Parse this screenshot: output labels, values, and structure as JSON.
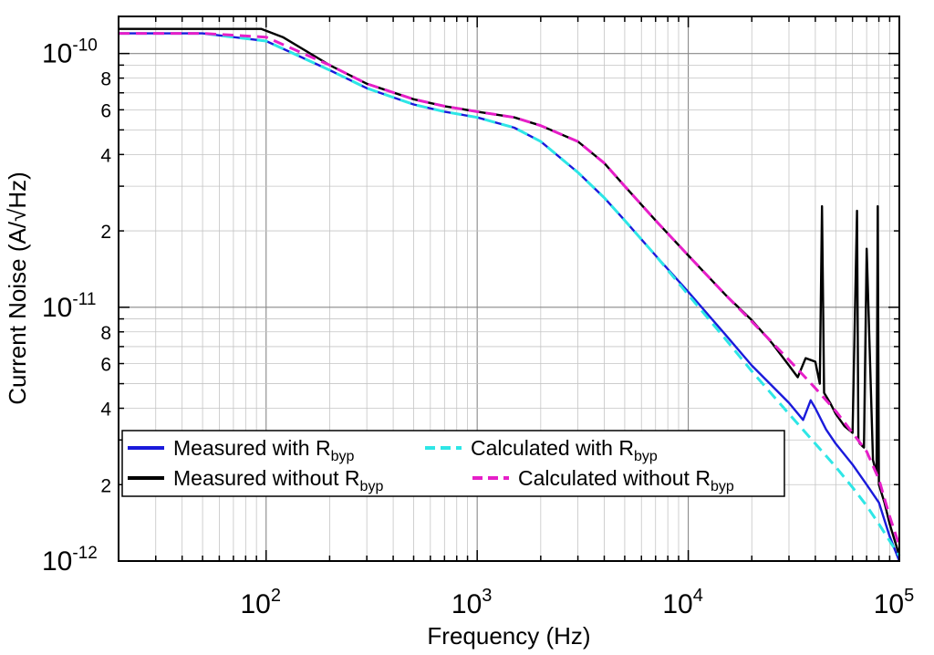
{
  "chart_data": {
    "type": "line",
    "xscale": "log",
    "yscale": "log",
    "xlim": [
      20,
      100000
    ],
    "ylim": [
      1e-12,
      1.4e-10
    ],
    "xlabel": "Frequency (Hz)",
    "ylabel": "Current Noise (A/√Hz)",
    "x_ticks": [
      {
        "value": 100,
        "base": "10",
        "exp": "2"
      },
      {
        "value": 1000,
        "base": "10",
        "exp": "3"
      },
      {
        "value": 10000,
        "base": "10",
        "exp": "4"
      },
      {
        "value": 100000,
        "base": "10",
        "exp": "5"
      }
    ],
    "y_major_ticks": [
      {
        "value": 1e-10,
        "base": "10",
        "exp": "-10"
      },
      {
        "value": 1e-11,
        "base": "10",
        "exp": "-11"
      },
      {
        "value": 1e-12,
        "base": "10",
        "exp": "-12"
      }
    ],
    "y_minor_labels": [
      {
        "value": 8e-11,
        "label": "8"
      },
      {
        "value": 6e-11,
        "label": "6"
      },
      {
        "value": 4e-11,
        "label": "4"
      },
      {
        "value": 2e-11,
        "label": "2"
      },
      {
        "value": 8e-12,
        "label": "8"
      },
      {
        "value": 6e-12,
        "label": "6"
      },
      {
        "value": 4e-12,
        "label": "4"
      },
      {
        "value": 2e-12,
        "label": "2"
      }
    ],
    "grid": true,
    "legend_position": "lower-left",
    "series": [
      {
        "name": "Measured with R_byp",
        "label_main": "Measured with R",
        "label_sub": "byp",
        "color": "#1a1adb",
        "style": "solid",
        "x": [
          20,
          50,
          100,
          200,
          300,
          500,
          700,
          1000,
          1500,
          2000,
          3000,
          4000,
          5000,
          7000,
          10000,
          15000,
          20000,
          30000,
          35000,
          38000,
          40000,
          45000,
          50000,
          60000,
          70000,
          80000,
          90000,
          100000
        ],
        "y": [
          1.2e-10,
          1.2e-10,
          1.12e-10,
          8.6e-11,
          7.3e-11,
          6.3e-11,
          5.9e-11,
          5.6e-11,
          5.1e-11,
          4.5e-11,
          3.4e-11,
          2.7e-11,
          2.2e-11,
          1.6e-11,
          1.15e-11,
          7.8e-12,
          5.9e-12,
          4.2e-12,
          3.6e-12,
          4.3e-12,
          4e-12,
          3.3e-12,
          2.9e-12,
          2.4e-12,
          2e-12,
          1.7e-12,
          1.25e-12,
          1e-12
        ]
      },
      {
        "name": "Measured without R_byp",
        "label_main": "Measured without R",
        "label_sub": "byp",
        "color": "#000000",
        "style": "solid",
        "x": [
          20,
          50,
          70,
          95,
          120,
          200,
          300,
          500,
          700,
          1000,
          1500,
          2000,
          3000,
          4000,
          5000,
          7000,
          10000,
          15000,
          20000,
          25000,
          30000,
          33000,
          36000,
          40000,
          42000,
          43000,
          44000,
          47000,
          50000,
          55000,
          60000,
          63000,
          64000,
          65000,
          68000,
          70000,
          75000,
          78000,
          79000,
          80000,
          85000,
          90000,
          100000
        ],
        "y": [
          1.25e-10,
          1.25e-10,
          1.25e-10,
          1.25e-10,
          1.16e-10,
          9e-11,
          7.6e-11,
          6.6e-11,
          6.2e-11,
          5.9e-11,
          5.6e-11,
          5.2e-11,
          4.5e-11,
          3.7e-11,
          3e-11,
          2.2e-11,
          1.6e-11,
          1.12e-11,
          8.9e-12,
          7.2e-12,
          5.9e-12,
          5.3e-12,
          6.3e-12,
          6.1e-12,
          5e-12,
          2.5e-11,
          4.6e-12,
          4.2e-12,
          3.8e-12,
          3.4e-12,
          3.2e-12,
          2.4e-11,
          3e-12,
          2.9e-12,
          2.8e-12,
          1.7e-11,
          2.5e-12,
          2.2e-12,
          2.5e-11,
          2e-12,
          1.7e-12,
          1.4e-12,
          1.05e-12
        ]
      },
      {
        "name": "Calculated with R_byp",
        "label_main": "Calculated with R",
        "label_sub": "byp",
        "color": "#2ee6e6",
        "style": "dashed",
        "x": [
          20,
          50,
          100,
          200,
          300,
          500,
          700,
          1000,
          1500,
          2000,
          3000,
          4000,
          5000,
          7000,
          10000,
          15000,
          20000,
          30000,
          40000,
          50000,
          60000,
          70000,
          80000,
          90000,
          100000
        ],
        "y": [
          1.2e-10,
          1.2e-10,
          1.12e-10,
          8.6e-11,
          7.3e-11,
          6.3e-11,
          5.9e-11,
          5.6e-11,
          5.1e-11,
          4.5e-11,
          3.4e-11,
          2.7e-11,
          2.2e-11,
          1.6e-11,
          1.12e-11,
          7.5e-12,
          5.6e-12,
          3.8e-12,
          2.9e-12,
          2.35e-12,
          1.95e-12,
          1.65e-12,
          1.4e-12,
          1.2e-12,
          1.05e-12
        ]
      },
      {
        "name": "Calculated without R_byp",
        "label_main": "Calculated without R",
        "label_sub": "byp",
        "color": "#e61fc8",
        "style": "dashed",
        "x": [
          20,
          50,
          100,
          200,
          300,
          500,
          700,
          1000,
          1500,
          2000,
          3000,
          4000,
          5000,
          7000,
          10000,
          15000,
          20000,
          30000,
          40000,
          50000,
          60000,
          70000,
          80000,
          90000,
          100000
        ],
        "y": [
          1.2e-10,
          1.2e-10,
          1.16e-10,
          9e-11,
          7.6e-11,
          6.6e-11,
          6.2e-11,
          5.9e-11,
          5.6e-11,
          5.2e-11,
          4.5e-11,
          3.7e-11,
          3e-11,
          2.2e-11,
          1.6e-11,
          1.12e-11,
          8.8e-12,
          6.2e-12,
          4.8e-12,
          3.9e-12,
          3.2e-12,
          2.7e-12,
          2.1e-12,
          1.5e-12,
          1.15e-12
        ]
      }
    ]
  }
}
